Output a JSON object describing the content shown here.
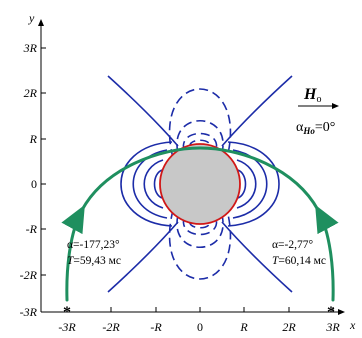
{
  "axes": {
    "x_label": "x",
    "y_label": "y",
    "x_ticks": [
      "-3R",
      "-2R",
      "-R",
      "0",
      "R",
      "2R",
      "3R"
    ],
    "y_ticks": [
      "3R",
      "2R",
      "R",
      "0",
      "-R",
      "-2R",
      "-3R"
    ]
  },
  "field": {
    "symbol": "H",
    "subscript": "o",
    "angle_label": "αHo=0°",
    "angle_symbol": "α",
    "angle_subscript": "Ho",
    "angle_value": "=0°"
  },
  "trajectories": [
    {
      "alpha_text": "α=-177,23°",
      "period_symbol": "T",
      "period_value": "=59,43 мс"
    },
    {
      "alpha_text": "α=-2,77°",
      "period_symbol": "T",
      "period_value": "=60,14 мс"
    }
  ],
  "start_markers": [
    "*",
    "*"
  ],
  "colors": {
    "field_lines": "#1c2ca8",
    "sphere_fill": "#c8c8c8",
    "sphere_edge": "#d01818",
    "trajectory": "#1f8f5f",
    "axes": "#000000"
  }
}
